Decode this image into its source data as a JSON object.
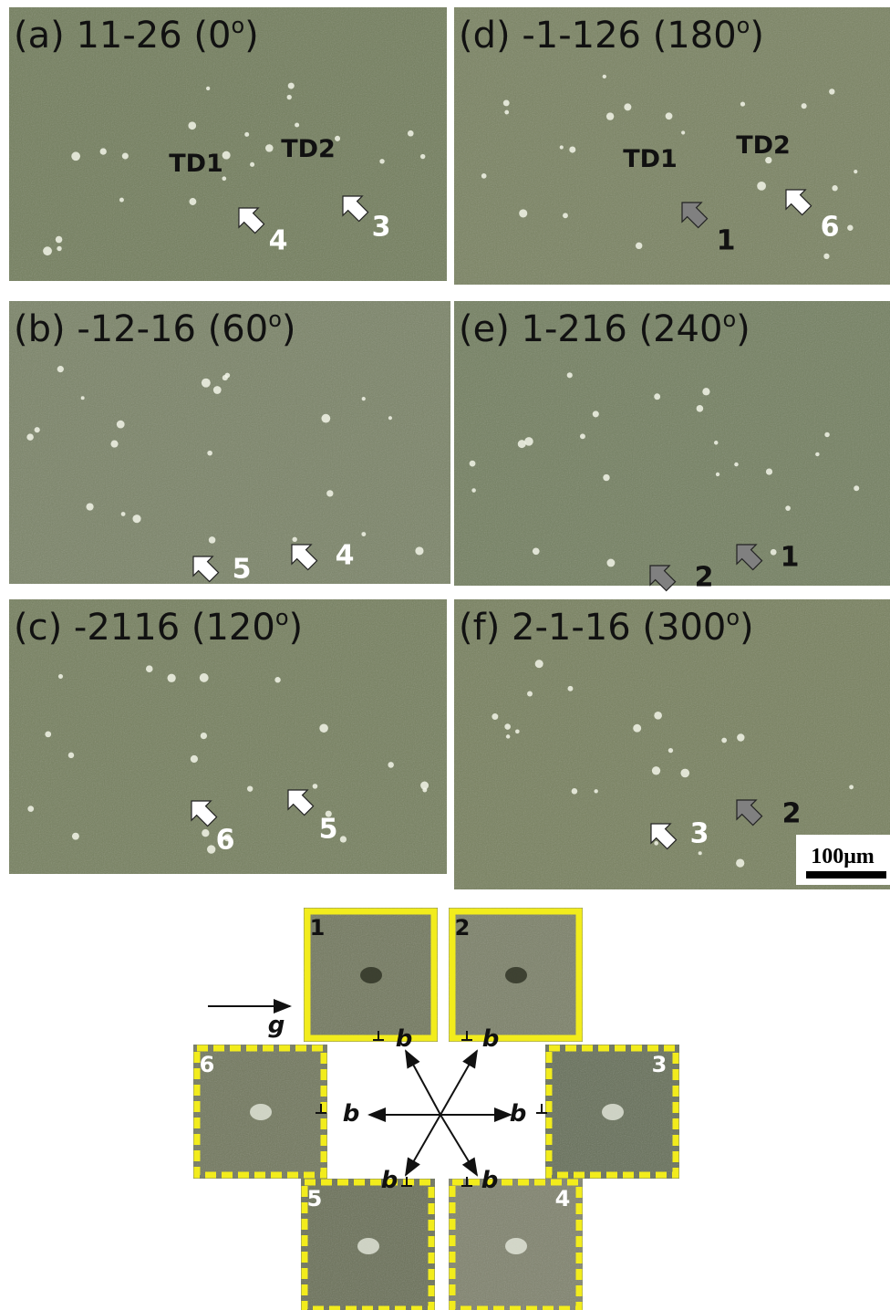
{
  "panels": [
    {
      "label": "(a) 11-26 (0",
      "sup": "o",
      "end": ")",
      "annotations": [
        "TD1",
        "TD2"
      ],
      "arrows": [
        {
          "label": "4",
          "color": "#ffffff"
        },
        {
          "label": "3",
          "color": "#ffffff"
        }
      ]
    },
    {
      "label": "(b) -12-16 (60",
      "sup": "o",
      "end": ")",
      "annotations": [],
      "arrows": [
        {
          "label": "5",
          "color": "#ffffff"
        },
        {
          "label": "4",
          "color": "#ffffff"
        }
      ]
    },
    {
      "label": "(c) -2116 (120",
      "sup": "o",
      "end": ")",
      "annotations": [],
      "arrows": [
        {
          "label": "6",
          "color": "#ffffff"
        },
        {
          "label": "5",
          "color": "#ffffff"
        }
      ]
    },
    {
      "label": "(d) -1-126 (180",
      "sup": "o",
      "end": ")",
      "annotations": [
        "TD1",
        "TD2"
      ],
      "arrows": [
        {
          "label": "1",
          "color": "#808080"
        },
        {
          "label": "6",
          "color": "#ffffff"
        }
      ]
    },
    {
      "label": "(e) 1-216 (240",
      "sup": "o",
      "end": ")",
      "annotations": [],
      "arrows": [
        {
          "label": "2",
          "color": "#808080"
        },
        {
          "label": "1",
          "color": "#808080"
        }
      ]
    },
    {
      "label": "(f) 2-1-16 (300",
      "sup": "o",
      "end": ")",
      "annotations": [],
      "arrows": [
        {
          "label": "3",
          "color": "#ffffff"
        },
        {
          "label": "2",
          "color": "#808080"
        }
      ]
    }
  ],
  "scale_bar": "100μm",
  "diagram": {
    "g": "g",
    "b": [
      "b",
      "b",
      "b",
      "b",
      "b",
      "b"
    ],
    "insets": [
      "1",
      "2",
      "3",
      "4",
      "5",
      "6"
    ]
  }
}
